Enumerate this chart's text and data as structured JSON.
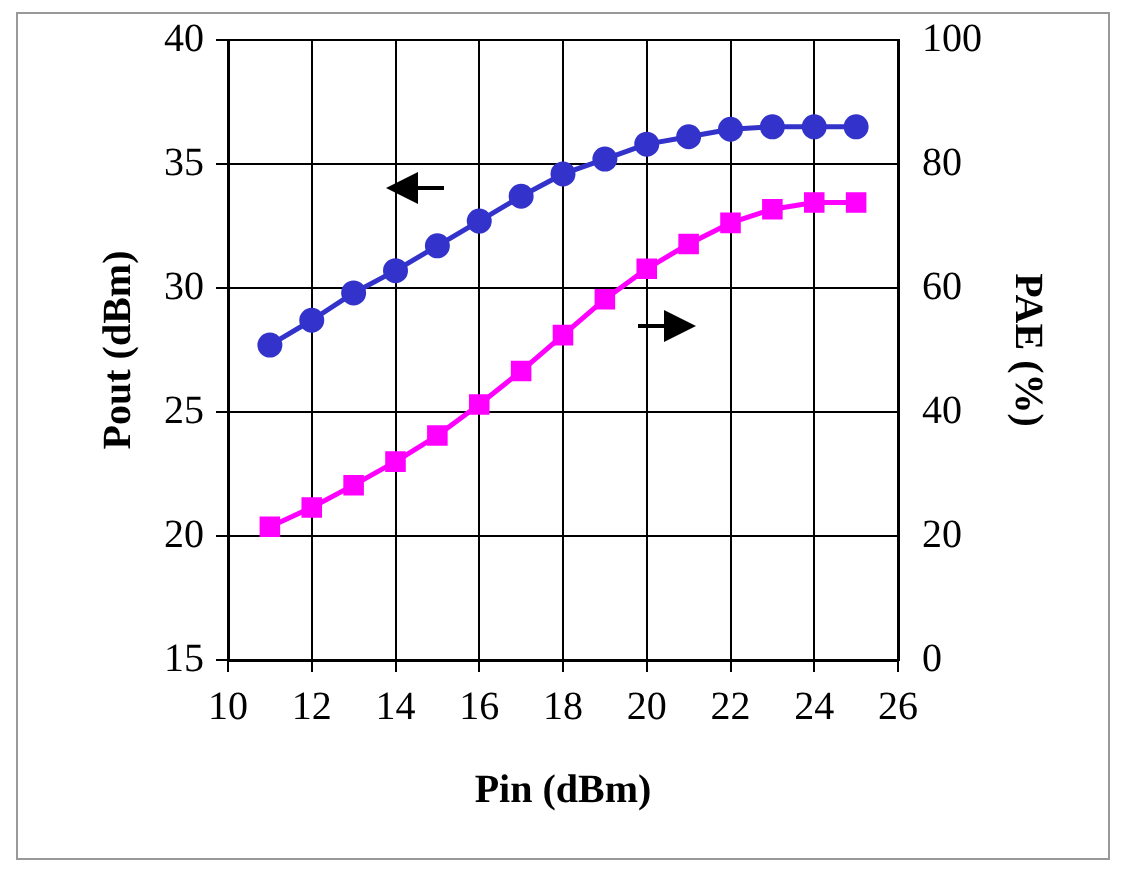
{
  "chart_data": {
    "type": "line",
    "xlabel": "Pin (dBm)",
    "ylabel": "Pout (dBm)",
    "y2label": "PAE (%)",
    "x": [
      11,
      12,
      13,
      14,
      15,
      16,
      17,
      18,
      19,
      20,
      21,
      22,
      23,
      24,
      25
    ],
    "series": [
      {
        "color": "#3333cc",
        "marker": "circle",
        "values": [
          27.7,
          28.7,
          29.8,
          30.7,
          31.7,
          32.7,
          33.7,
          34.6,
          35.2,
          35.8,
          36.1,
          36.4,
          36.5,
          36.5,
          36.5
        ]
      },
      {
        "color": "#ff00ff",
        "marker": "square",
        "axis": "y2",
        "values": [
          21.5,
          24.6,
          28.2,
          32,
          36.2,
          41.2,
          46.6,
          52.4,
          58.2,
          63.1,
          67.1,
          70.5,
          72.7,
          73.8,
          73.8
        ]
      }
    ],
    "xlim": [
      10,
      26
    ],
    "xticks": [
      10,
      12,
      14,
      16,
      18,
      20,
      22,
      24,
      26
    ],
    "ylim": [
      15,
      40
    ],
    "yticks": [
      15,
      20,
      25,
      30,
      35,
      40
    ],
    "y2lim": [
      0,
      100
    ],
    "y2ticks": [
      0,
      20,
      40,
      60,
      80,
      100
    ],
    "grid": true,
    "legend": false,
    "line_style": "solid"
  }
}
